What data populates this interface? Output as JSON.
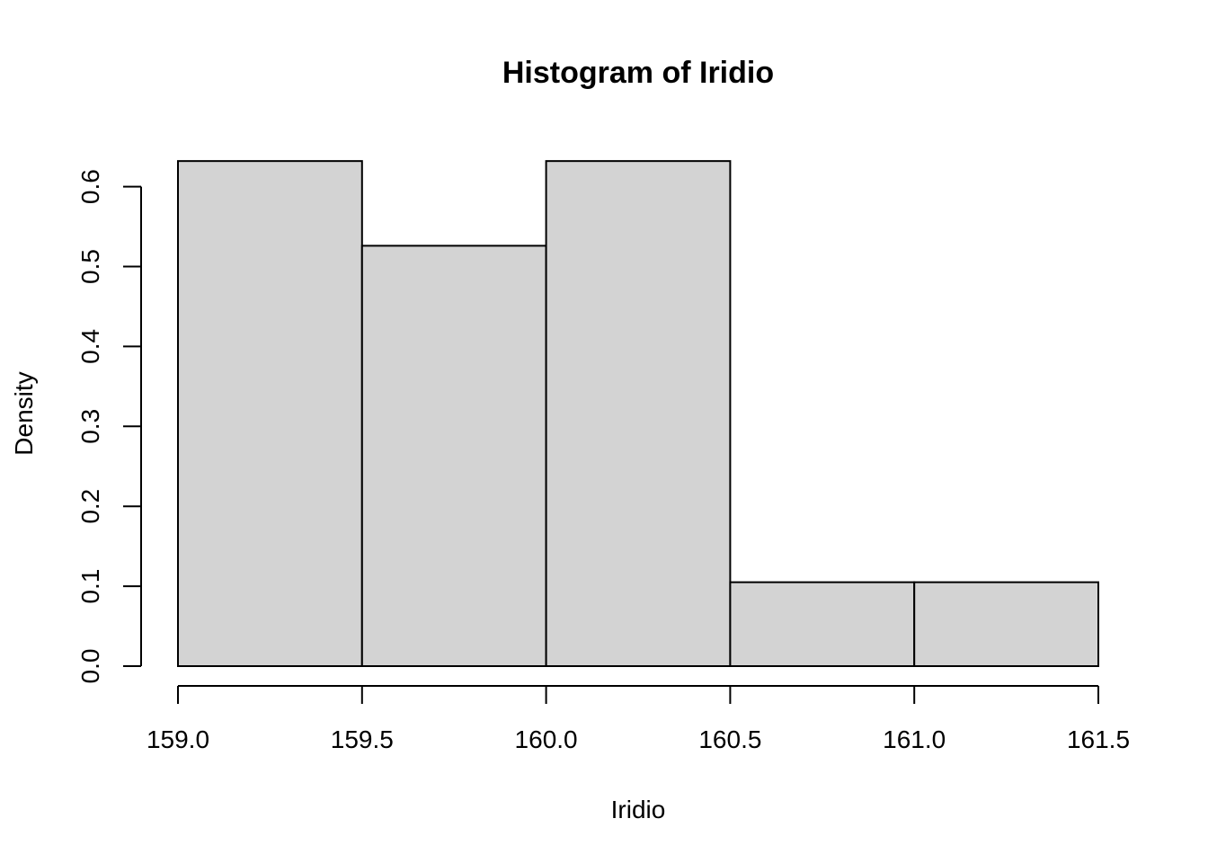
{
  "chart_data": {
    "type": "bar",
    "title": "Histogram of Iridio",
    "xlabel": "Iridio",
    "ylabel": "Density",
    "bins": [
      {
        "start": 159.0,
        "end": 159.5,
        "density": 0.632
      },
      {
        "start": 159.5,
        "end": 160.0,
        "density": 0.526
      },
      {
        "start": 160.0,
        "end": 160.5,
        "density": 0.632
      },
      {
        "start": 160.5,
        "end": 161.0,
        "density": 0.105
      },
      {
        "start": 161.0,
        "end": 161.5,
        "density": 0.105
      }
    ],
    "xlim": [
      159.0,
      161.5
    ],
    "ylim": [
      0.0,
      0.6
    ],
    "x_ticks": [
      159.0,
      159.5,
      160.0,
      160.5,
      161.0,
      161.5
    ],
    "x_tick_labels": [
      "159.0",
      "159.5",
      "160.0",
      "160.5",
      "161.0",
      "161.5"
    ],
    "y_ticks": [
      0.0,
      0.1,
      0.2,
      0.3,
      0.4,
      0.5,
      0.6
    ],
    "y_tick_labels": [
      "0.0",
      "0.1",
      "0.2",
      "0.3",
      "0.4",
      "0.5",
      "0.6"
    ],
    "bar_color": "#d3d3d3",
    "border_color": "#000000",
    "grid": false
  }
}
